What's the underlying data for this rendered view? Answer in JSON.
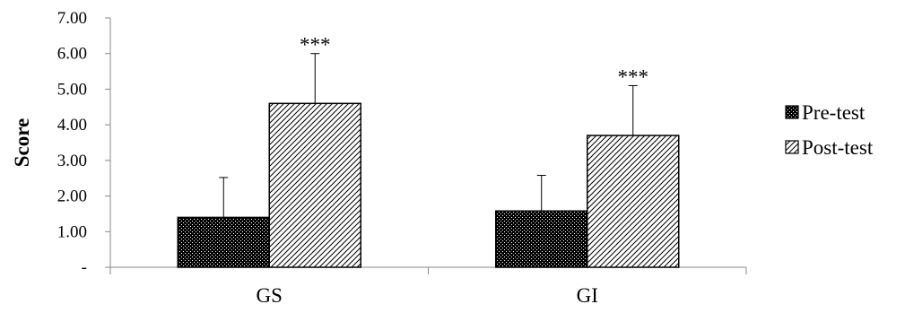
{
  "chart_data": {
    "type": "bar",
    "title": "",
    "xlabel": "",
    "ylabel": "Score",
    "categories": [
      "GS",
      "GI"
    ],
    "series": [
      {
        "name": "Pre-test",
        "values": [
          1.4,
          1.58
        ],
        "errors": [
          1.12,
          1.0
        ],
        "pattern": "dots",
        "color": "#000000"
      },
      {
        "name": "Post-test",
        "values": [
          4.6,
          3.7
        ],
        "errors": [
          1.4,
          1.4
        ],
        "pattern": "diagonal-hatch",
        "color": "#000000"
      }
    ],
    "significance": [
      "***",
      "***"
    ],
    "ylim": [
      0,
      7
    ],
    "yticks": [
      {
        "value": 0,
        "label": "-"
      },
      {
        "value": 1,
        "label": "1.00"
      },
      {
        "value": 2,
        "label": "2.00"
      },
      {
        "value": 3,
        "label": "3.00"
      },
      {
        "value": 4,
        "label": "4.00"
      },
      {
        "value": 5,
        "label": "5.00"
      },
      {
        "value": 6,
        "label": "6.00"
      },
      {
        "value": 7,
        "label": "7.00"
      }
    ],
    "grid": false,
    "legend": "right"
  }
}
